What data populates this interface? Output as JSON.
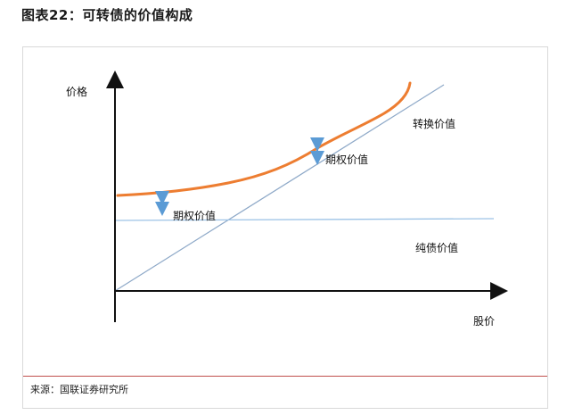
{
  "header": {
    "title": "图表22：可转债的价值构成"
  },
  "diagram": {
    "y_axis_label": "价格",
    "x_axis_label": "股价",
    "labels": {
      "conversion_value": "转换价值",
      "option_value_upper": "期权价值",
      "option_value_lower": "期权价值",
      "bond_value": "纯债价值"
    },
    "colors": {
      "convertible_price_curve": "#ED7D31",
      "conversion_line": "#8EA9C8",
      "bond_floor_line": "#9DC3E6",
      "arrow": "#5B9BD5",
      "axis": "#111111"
    }
  },
  "footer": {
    "source": "来源：国联证券研究所"
  }
}
